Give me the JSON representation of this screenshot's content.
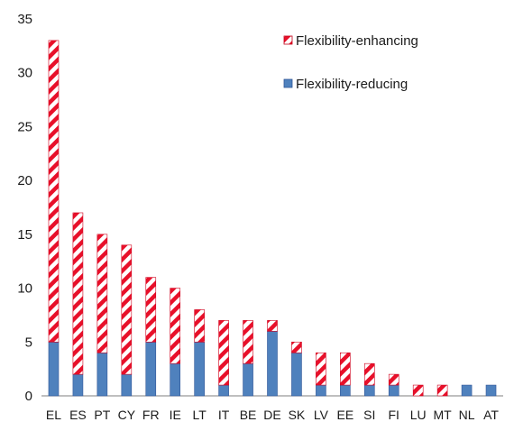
{
  "chart_data": {
    "type": "bar",
    "stacked": true,
    "categories": [
      "EL",
      "ES",
      "PT",
      "CY",
      "FR",
      "IE",
      "LT",
      "IT",
      "BE",
      "DE",
      "SK",
      "LV",
      "EE",
      "SI",
      "FI",
      "LU",
      "MT",
      "NL",
      "AT"
    ],
    "series": [
      {
        "name": "Flexibility-reducing",
        "values": [
          5,
          2,
          4,
          2,
          5,
          3,
          5,
          1,
          3,
          6,
          4,
          1,
          1,
          1,
          1,
          0,
          0,
          1,
          1
        ],
        "color": "#4f81bd",
        "pattern": "solid"
      },
      {
        "name": "Flexibility-enhancing",
        "values": [
          28,
          15,
          11,
          12,
          6,
          7,
          3,
          6,
          4,
          1,
          1,
          3,
          3,
          2,
          1,
          1,
          1,
          0,
          0
        ],
        "color": "#e8102a",
        "pattern": "diagonal-stripes"
      }
    ],
    "ylim": [
      0,
      35
    ],
    "yticks": [
      0,
      5,
      10,
      15,
      20,
      25,
      30,
      35
    ],
    "title": "",
    "xlabel": "",
    "ylabel": "",
    "grid": false,
    "legend_position": "top-right"
  }
}
